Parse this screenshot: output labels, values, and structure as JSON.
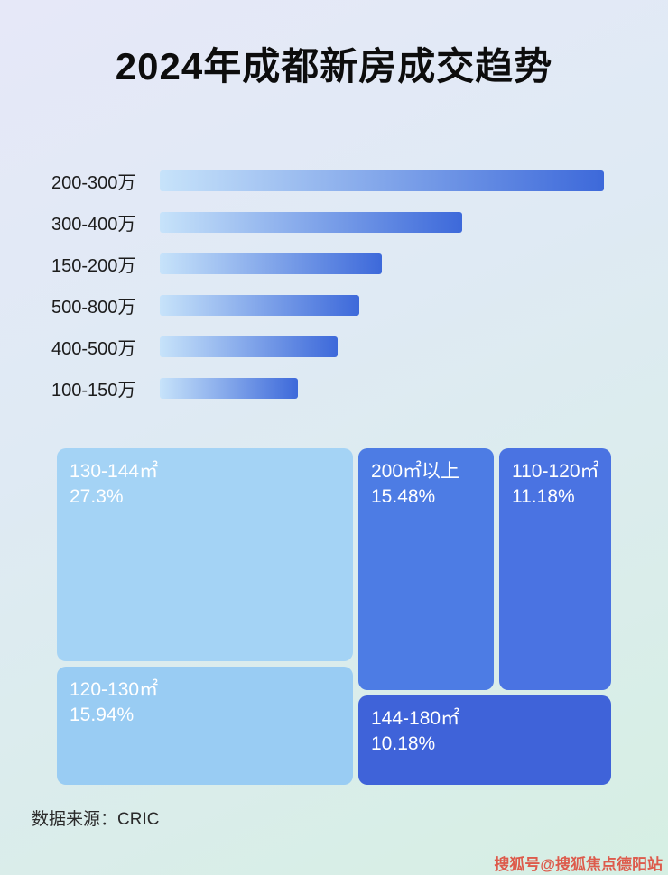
{
  "page": {
    "title": "2024年成都新房成交趋势",
    "source": "数据来源：CRIC",
    "watermark": "搜狐号@搜狐焦点德阳站"
  },
  "colors": {
    "bar_gradient_start": "#c7e3fa",
    "bar_gradient_end": "#3d69da",
    "treemap_light_1": "#a4d3f5",
    "treemap_light_2": "#99ccf3",
    "treemap_mid_1": "#4d7ce4",
    "treemap_mid_2": "#4a73e2",
    "treemap_dark": "#3f63d9",
    "watermark_color": "#dd5b4c"
  },
  "chart_data": [
    {
      "type": "bar",
      "orientation": "horizontal",
      "title": "",
      "categories": [
        "200-300万",
        "300-400万",
        "150-200万",
        "500-800万",
        "400-500万",
        "100-150万"
      ],
      "values": [
        100,
        68,
        50,
        45,
        40,
        31
      ],
      "values_note": "no numeric axis displayed in image; values are bar lengths normalized so the longest bar = 100",
      "xlabel": "",
      "ylabel": "",
      "grid": false,
      "legend": false
    },
    {
      "type": "treemap",
      "title": "",
      "items": [
        {
          "label": "130-144㎡",
          "value": 27.3,
          "display": "27.3%"
        },
        {
          "label": "200㎡以上",
          "value": 15.48,
          "display": "15.48%"
        },
        {
          "label": "110-120㎡",
          "value": 11.18,
          "display": "11.18%"
        },
        {
          "label": "120-130㎡",
          "value": 15.94,
          "display": "15.94%"
        },
        {
          "label": "144-180㎡",
          "value": 10.18,
          "display": "10.18%"
        }
      ]
    }
  ]
}
